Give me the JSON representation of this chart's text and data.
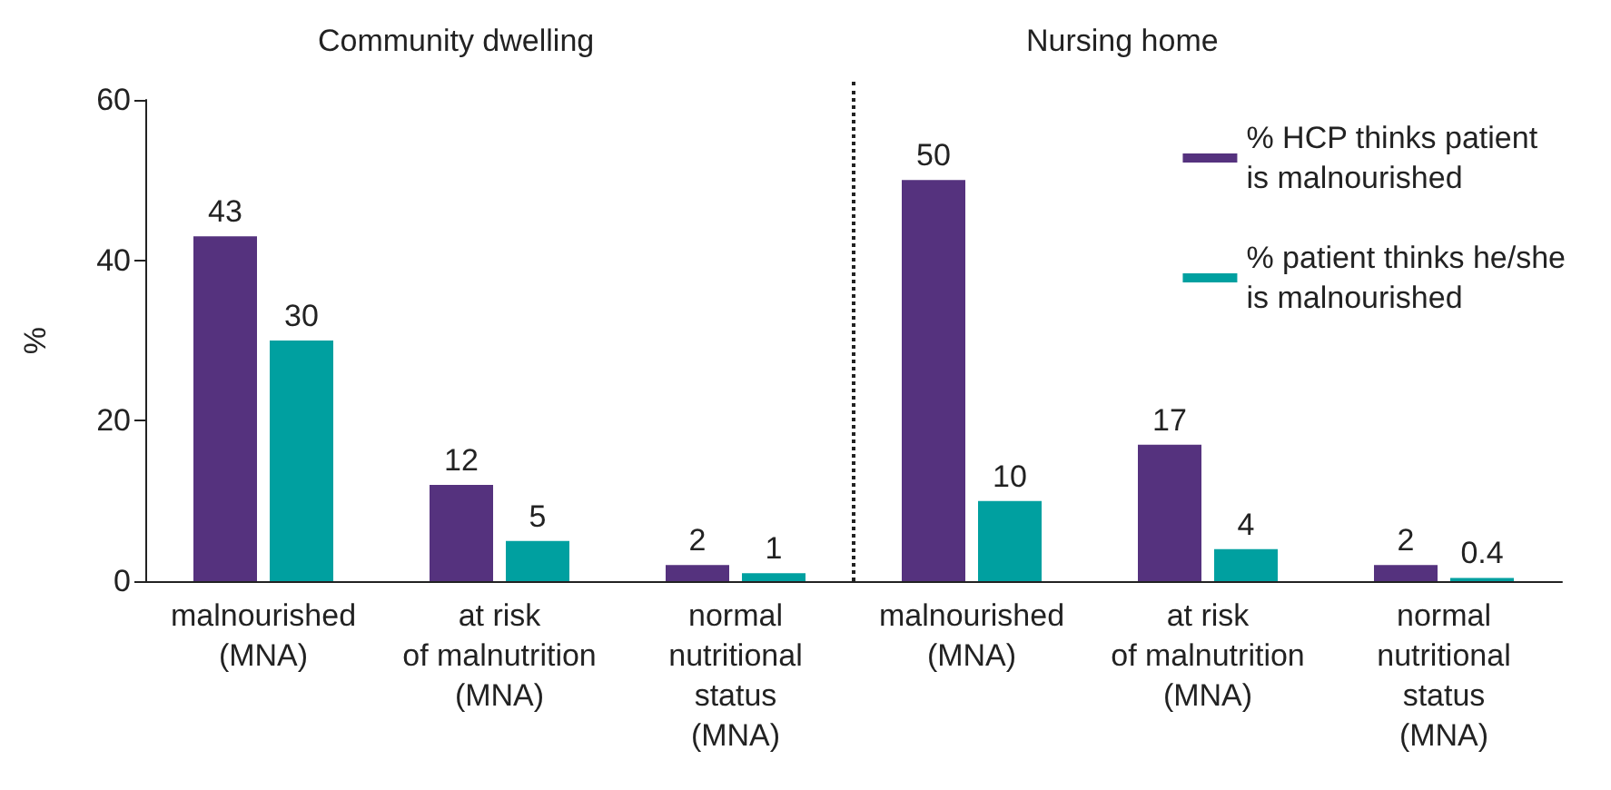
{
  "chart_data": {
    "type": "bar",
    "ylabel": "%",
    "categories": [
      "malnourished\n(MNA)",
      "at risk\nof malnutrition\n(MNA)",
      "normal\nnutritional\nstatus\n(MNA)",
      "malnourished\n(MNA)",
      "at risk\nof malnutrition\n(MNA)",
      "normal\nnutritional\nstatus\n(MNA)"
    ],
    "series": [
      {
        "name": "% HCP thinks patient\nis malnourished",
        "color": "#55327e",
        "values": [
          43,
          12,
          2,
          50,
          17,
          2
        ]
      },
      {
        "name": "% patient thinks he/she\nis malnourished",
        "color": "#00a0a0",
        "values": [
          30,
          5,
          1,
          10,
          4,
          0.4
        ]
      }
    ],
    "ylim": [
      0,
      60
    ],
    "yticks": [
      0,
      20,
      40,
      60
    ],
    "grid": false,
    "legend": "top right",
    "data_labels": true,
    "annotations": [
      "Community dwelling",
      "Nursing home"
    ]
  }
}
